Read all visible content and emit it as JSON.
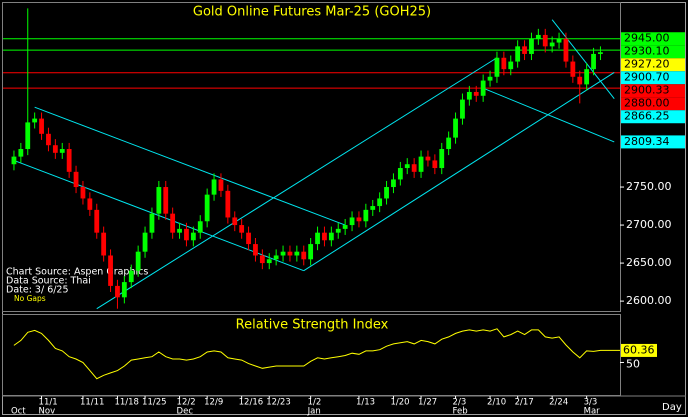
{
  "chart_data": [
    {
      "type": "candlestick",
      "title": "Gold Online Futures Mar-25 (GOH25)",
      "notes": [
        "Chart Source: Aspen Graphics",
        "Data Source: Thai",
        "Date:   3/ 6/25"
      ],
      "gap_note": "No Gaps",
      "up_color": "#00ff00",
      "down_color": "#ff0000",
      "categories": [
        null,
        null,
        null,
        null,
        "11/1",
        null,
        null,
        null,
        null,
        null,
        "11/11",
        null,
        null,
        null,
        null,
        "11/18",
        null,
        null,
        null,
        "11/25",
        null,
        null,
        null,
        null,
        "12/2",
        null,
        null,
        null,
        "12/9",
        null,
        null,
        null,
        null,
        "12/16",
        null,
        null,
        null,
        "12/23",
        null,
        null,
        null,
        null,
        null,
        "1/2",
        null,
        null,
        null,
        null,
        null,
        null,
        "1/13",
        null,
        null,
        null,
        null,
        "1/20",
        null,
        null,
        null,
        "1/27",
        null,
        null,
        null,
        null,
        "2/3",
        null,
        null,
        null,
        null,
        "2/10",
        null,
        null,
        null,
        "2/17",
        null,
        null,
        null,
        null,
        "2/24",
        null,
        null,
        null,
        null,
        "3/3",
        null,
        null
      ],
      "months": [
        "Oct",
        null,
        null,
        null,
        "Nov",
        null,
        null,
        null,
        null,
        null,
        null,
        null,
        null,
        null,
        null,
        null,
        null,
        null,
        null,
        null,
        null,
        null,
        null,
        null,
        "Dec",
        null,
        null,
        null,
        null,
        null,
        null,
        null,
        null,
        null,
        null,
        null,
        null,
        null,
        null,
        null,
        null,
        null,
        null,
        "Jan",
        null,
        null,
        null,
        null,
        null,
        null,
        null,
        null,
        null,
        null,
        null,
        null,
        null,
        null,
        null,
        null,
        null,
        null,
        null,
        null,
        "Feb",
        null,
        null,
        null,
        null,
        null,
        null,
        null,
        null,
        null,
        null,
        null,
        null,
        null,
        null,
        null,
        null,
        null,
        null,
        "Mar",
        null,
        null
      ],
      "open": [
        2780,
        2790,
        2800,
        2835,
        2840,
        2820,
        2805,
        2795,
        2800,
        2770,
        2750,
        2735,
        2720,
        2690,
        2660,
        2620,
        2605,
        2625,
        2640,
        2665,
        2690,
        2715,
        2750,
        2715,
        2690,
        2695,
        2680,
        2690,
        2705,
        2740,
        2760,
        2745,
        2710,
        2700,
        2690,
        2675,
        2660,
        2650,
        2655,
        2660,
        2665,
        2660,
        2665,
        2655,
        2675,
        2690,
        2680,
        2690,
        2695,
        2700,
        2710,
        2705,
        2720,
        2725,
        2735,
        2750,
        2760,
        2775,
        2780,
        2770,
        2790,
        2785,
        2775,
        2800,
        2815,
        2840,
        2865,
        2875,
        2870,
        2890,
        2895,
        2920,
        2905,
        2915,
        2935,
        2925,
        2945,
        2950,
        2935,
        2940,
        2945,
        2915,
        2895,
        2885,
        2905,
        2925
      ],
      "high": [
        2798,
        2808,
        2985,
        2848,
        2848,
        2828,
        2813,
        2808,
        2808,
        2778,
        2758,
        2743,
        2728,
        2698,
        2668,
        2628,
        2633,
        2648,
        2673,
        2698,
        2723,
        2758,
        2758,
        2723,
        2703,
        2703,
        2698,
        2713,
        2748,
        2768,
        2768,
        2753,
        2718,
        2708,
        2698,
        2683,
        2668,
        2663,
        2668,
        2673,
        2673,
        2673,
        2673,
        2683,
        2698,
        2698,
        2698,
        2703,
        2708,
        2718,
        2718,
        2728,
        2733,
        2743,
        2758,
        2768,
        2783,
        2788,
        2788,
        2798,
        2798,
        2793,
        2808,
        2823,
        2848,
        2873,
        2883,
        2883,
        2898,
        2903,
        2928,
        2928,
        2923,
        2943,
        2943,
        2953,
        2958,
        2958,
        2948,
        2953,
        2953,
        2923,
        2903,
        2913,
        2933,
        2935
      ],
      "low": [
        2772,
        2782,
        2792,
        2827,
        2812,
        2797,
        2787,
        2787,
        2762,
        2742,
        2727,
        2712,
        2682,
        2652,
        2612,
        2590,
        2597,
        2617,
        2632,
        2657,
        2682,
        2707,
        2707,
        2682,
        2682,
        2672,
        2672,
        2682,
        2697,
        2732,
        2737,
        2702,
        2692,
        2682,
        2667,
        2652,
        2642,
        2642,
        2647,
        2652,
        2652,
        2652,
        2647,
        2647,
        2667,
        2672,
        2672,
        2682,
        2687,
        2692,
        2697,
        2697,
        2712,
        2717,
        2727,
        2742,
        2752,
        2767,
        2762,
        2762,
        2777,
        2767,
        2767,
        2792,
        2807,
        2832,
        2857,
        2862,
        2862,
        2882,
        2887,
        2897,
        2897,
        2907,
        2917,
        2917,
        2937,
        2927,
        2927,
        2932,
        2907,
        2887,
        2860,
        2877,
        2897,
        2917
      ],
      "close": [
        2790,
        2800,
        2835,
        2840,
        2820,
        2805,
        2795,
        2800,
        2770,
        2750,
        2735,
        2720,
        2690,
        2660,
        2620,
        2605,
        2625,
        2640,
        2665,
        2690,
        2715,
        2750,
        2715,
        2690,
        2695,
        2680,
        2690,
        2705,
        2740,
        2760,
        2745,
        2710,
        2700,
        2690,
        2675,
        2660,
        2650,
        2655,
        2660,
        2665,
        2660,
        2665,
        2655,
        2675,
        2690,
        2680,
        2690,
        2695,
        2700,
        2710,
        2705,
        2720,
        2725,
        2735,
        2750,
        2760,
        2775,
        2780,
        2770,
        2790,
        2785,
        2775,
        2800,
        2815,
        2840,
        2865,
        2875,
        2870,
        2890,
        2895,
        2920,
        2905,
        2915,
        2935,
        2925,
        2945,
        2950,
        2935,
        2940,
        2945,
        2915,
        2895,
        2885,
        2905,
        2925,
        2927.2
      ],
      "ylim": [
        2587,
        2992
      ],
      "yticks": [
        {
          "value": 2600,
          "label": "2600.00"
        },
        {
          "value": 2650,
          "label": "2650.00"
        },
        {
          "value": 2700,
          "label": "2700.00"
        },
        {
          "value": 2750,
          "label": "2750.00"
        }
      ],
      "levels": [
        {
          "value": 2945,
          "label": "2945.00",
          "color": "#00ff00",
          "line": true
        },
        {
          "value": 2930.1,
          "label": "2930.10",
          "color": "#00ff00",
          "line": true
        },
        {
          "value": 2927.2,
          "label": "2927.20",
          "color": "#ffff00",
          "line": false
        },
        {
          "value": 2900.7,
          "label": "2900.70",
          "color": "#00ffff",
          "line": false
        },
        {
          "value": 2900.33,
          "label": "2900.33",
          "color": "#ff0000",
          "line": true
        },
        {
          "value": 2880,
          "label": "2880.00",
          "color": "#ff0000",
          "line": true
        },
        {
          "value": 2866.25,
          "label": "2866.25",
          "color": "#00ffff",
          "line": false
        },
        {
          "value": 2809.34,
          "label": "2809.34",
          "color": "#00ffff",
          "line": false
        }
      ],
      "trendline_color": "#00e5ee",
      "trendlines": [
        {
          "x": [
            3,
            48
          ],
          "y": [
            2855,
            2700
          ]
        },
        {
          "x": [
            0,
            42
          ],
          "y": [
            2785,
            2640
          ]
        },
        {
          "x": [
            12,
            70
          ],
          "y": [
            2590,
            2920
          ]
        },
        {
          "x": [
            42,
            87
          ],
          "y": [
            2640,
            2900.7
          ]
        },
        {
          "x": [
            78,
            87
          ],
          "y": [
            2970,
            2866.25
          ]
        },
        {
          "x": [
            68,
            87
          ],
          "y": [
            2880,
            2809.34
          ]
        }
      ]
    },
    {
      "type": "line",
      "title": "Relative Strength Index",
      "color": "#ffff00",
      "xlabel": "Day",
      "values": [
        64.7,
        69,
        76,
        77.6,
        75,
        69,
        62,
        60,
        55,
        53,
        50,
        43,
        36,
        39,
        41,
        43,
        47,
        52,
        53,
        54,
        55,
        59,
        55,
        53,
        53,
        52,
        53,
        55,
        59,
        60,
        59,
        54,
        53,
        52,
        49,
        47,
        45,
        46,
        47,
        47,
        47,
        47,
        47,
        51,
        54,
        53,
        54,
        55,
        56,
        58,
        57,
        60,
        60,
        61,
        64,
        66,
        67,
        68,
        66,
        69,
        68,
        66,
        70,
        72,
        75,
        77,
        78,
        77,
        78,
        77,
        79,
        72,
        74,
        77,
        74,
        78,
        78,
        72,
        71,
        72,
        65,
        59,
        54,
        60,
        59.5,
        60.36
      ],
      "last_value_label": "60.36",
      "ylim": [
        22,
        90
      ],
      "yticks": [
        50
      ]
    }
  ]
}
